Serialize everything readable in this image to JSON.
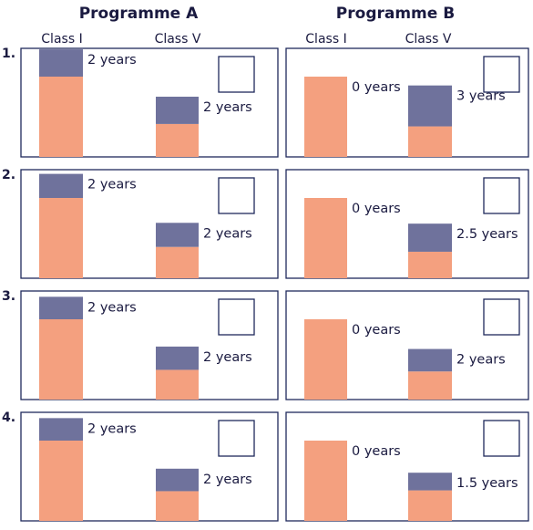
{
  "programmes": [
    {
      "name": "Programme A",
      "classes": [
        "Class I",
        "Class V"
      ]
    },
    {
      "name": "Programme B",
      "classes": [
        "Class I",
        "Class V"
      ]
    }
  ],
  "colors": {
    "base_bar": "#f4a07f",
    "programme_segment": "#6f729c",
    "panel_border": "#1f2a5c",
    "text": "#1a1a40"
  },
  "chart_data": {
    "type": "bar",
    "units": "years",
    "rows": [
      {
        "label": "1.",
        "programme_a": {
          "class_i": {
            "base": 1.0,
            "added": 0.34,
            "label": "2 years"
          },
          "class_v": {
            "base": 0.41,
            "added": 0.34,
            "label": "2 years"
          }
        },
        "programme_b": {
          "class_i": {
            "base": 1.0,
            "added": 0.0,
            "label": "0 years"
          },
          "class_v": {
            "base": 0.38,
            "added": 0.51,
            "label": "3 years"
          }
        }
      },
      {
        "label": "2.",
        "programme_a": {
          "class_i": {
            "base": 1.0,
            "added": 0.3,
            "label": "2 years"
          },
          "class_v": {
            "base": 0.39,
            "added": 0.3,
            "label": "2 years"
          }
        },
        "programme_b": {
          "class_i": {
            "base": 1.0,
            "added": 0.0,
            "label": "0 years"
          },
          "class_v": {
            "base": 0.33,
            "added": 0.35,
            "label": "2.5 years"
          }
        }
      },
      {
        "label": "3.",
        "programme_a": {
          "class_i": {
            "base": 1.0,
            "added": 0.28,
            "label": "2 years"
          },
          "class_v": {
            "base": 0.37,
            "added": 0.29,
            "label": "2 years"
          }
        },
        "programme_b": {
          "class_i": {
            "base": 1.0,
            "added": 0.0,
            "label": "0 years"
          },
          "class_v": {
            "base": 0.35,
            "added": 0.28,
            "label": "2 years"
          }
        }
      },
      {
        "label": "4.",
        "programme_a": {
          "class_i": {
            "base": 1.0,
            "added": 0.28,
            "label": "2 years"
          },
          "class_v": {
            "base": 0.37,
            "added": 0.28,
            "label": "2 years"
          }
        },
        "programme_b": {
          "class_i": {
            "base": 1.0,
            "added": 0.0,
            "label": "0 years"
          },
          "class_v": {
            "base": 0.38,
            "added": 0.22,
            "label": "1.5 years"
          }
        }
      }
    ]
  }
}
